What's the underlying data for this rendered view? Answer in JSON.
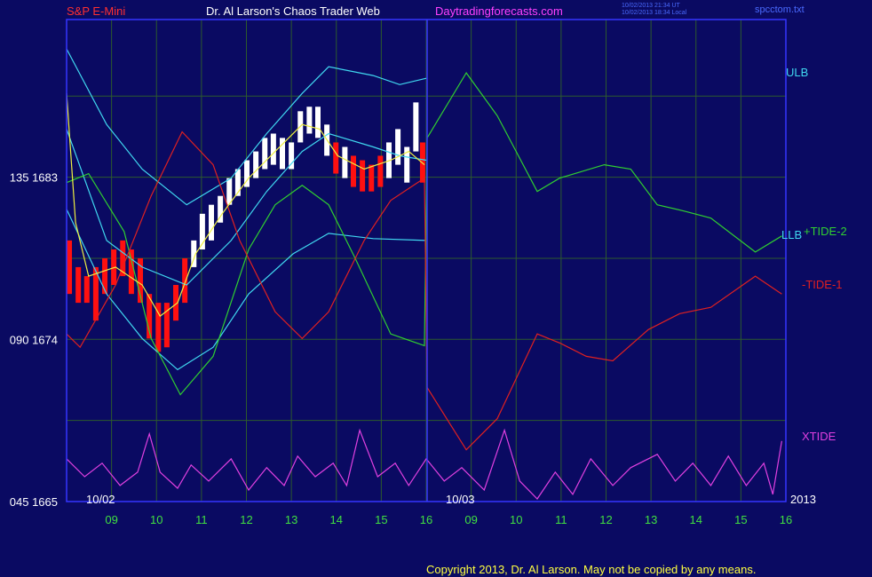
{
  "chart_data": {
    "type": "line",
    "title": "Dr. Al Larson's Chaos Trader Web",
    "symbol": "S&P E-Mini",
    "site": "Daytradingforecasts.com",
    "timestamps": [
      "10/02/2013 21:34 UT",
      "10/02/2013 18:34 Local"
    ],
    "file": "spcctom.txt",
    "copyright": "Copyright 2013, Dr. Al Larson. May not be copied by any means.",
    "annotations": [
      "10/02",
      "10/03",
      "2013"
    ],
    "xlim": [
      0,
      16
    ],
    "xticks": [
      {
        "value": 1,
        "label": "09"
      },
      {
        "value": 2,
        "label": "10"
      },
      {
        "value": 3,
        "label": "11"
      },
      {
        "value": 4,
        "label": "12"
      },
      {
        "value": 5,
        "label": "13"
      },
      {
        "value": 6,
        "label": "14"
      },
      {
        "value": 7,
        "label": "15"
      },
      {
        "value": 8,
        "label": "16"
      },
      {
        "value": 9,
        "label": "09"
      },
      {
        "value": 10,
        "label": "10"
      },
      {
        "value": 11,
        "label": "11"
      },
      {
        "value": 12,
        "label": "12"
      },
      {
        "value": 13,
        "label": "13"
      },
      {
        "value": 14,
        "label": "14"
      },
      {
        "value": 15,
        "label": "15"
      },
      {
        "value": 16,
        "label": "16"
      }
    ],
    "ylim": [
      1665,
      1691.75
    ],
    "yticks": [
      {
        "value": 1683,
        "label": "135 1683"
      },
      {
        "value": 1674,
        "label": "090 1674"
      },
      {
        "value": 1665,
        "label": "045 1665"
      }
    ],
    "ygrid": [
      1687.5,
      1683,
      1678.5,
      1674,
      1669.5
    ],
    "grid": true,
    "grid_color": "#2d5a2d",
    "series": [
      {
        "name": "ULB",
        "color": "#40d8f0",
        "x": [
          0,
          0.89,
          1.68,
          2.67,
          3.66,
          4.45,
          5.24,
          5.83,
          6.82,
          7.41,
          8.0
        ],
        "values": [
          1690.12,
          1685.92,
          1683.45,
          1681.47,
          1682.95,
          1685.42,
          1687.65,
          1689.13,
          1688.64,
          1688.14,
          1688.49
        ]
      },
      {
        "color": "#40d8f0",
        "x": [
          0,
          0.89,
          1.68,
          2.67,
          3.66,
          4.45,
          5.24,
          5.83,
          6.82,
          7.41,
          8.0
        ],
        "values": [
          1685.67,
          1679.49,
          1678.01,
          1677.02,
          1679.49,
          1682.21,
          1684.43,
          1685.42,
          1684.68,
          1684.19,
          1683.94
        ]
      },
      {
        "name": "LLB",
        "color": "#40d8f0",
        "x": [
          0,
          0.89,
          1.68,
          2.47,
          3.26,
          4.05,
          5.04,
          5.83,
          6.82,
          8.0
        ],
        "values": [
          1681.22,
          1676.52,
          1674.05,
          1672.32,
          1673.56,
          1676.52,
          1678.75,
          1679.88,
          1679.59,
          1679.49
        ]
      },
      {
        "name": "+TIDE-2",
        "color": "#30d030",
        "x": [
          0,
          0.49,
          1.28,
          1.88,
          2.53,
          3.26,
          4.05,
          4.64,
          5.24,
          5.83,
          6.42,
          7.21,
          7.96,
          8.02,
          8.89,
          9.58,
          10.47,
          10.97,
          11.96,
          12.55,
          13.14,
          13.74,
          14.33,
          15.32,
          15.91
        ],
        "values": [
          1682.7,
          1683.2,
          1679.98,
          1674.05,
          1670.93,
          1673.06,
          1678.99,
          1681.47,
          1682.55,
          1681.47,
          1678.5,
          1674.3,
          1673.65,
          1685.18,
          1688.79,
          1686.41,
          1682.21,
          1682.95,
          1683.69,
          1683.45,
          1681.47,
          1681.12,
          1680.73,
          1678.85,
          1679.74
        ]
      },
      {
        "name": "-TIDE-1",
        "color": "#e02020",
        "x": [
          0,
          0.3,
          1.09,
          1.88,
          2.57,
          3.26,
          3.85,
          4.64,
          5.24,
          5.83,
          6.62,
          7.21,
          7.96,
          8.02,
          8.89,
          9.58,
          10.47,
          10.97,
          11.56,
          12.15,
          12.94,
          13.64,
          14.33,
          15.32,
          15.91
        ],
        "values": [
          1674.3,
          1673.56,
          1677.02,
          1681.96,
          1685.52,
          1683.69,
          1679.49,
          1675.53,
          1674.05,
          1675.53,
          1679.49,
          1681.71,
          1682.95,
          1671.33,
          1667.87,
          1669.6,
          1674.3,
          1673.8,
          1673.06,
          1672.81,
          1674.54,
          1675.43,
          1675.78,
          1677.51,
          1676.52
        ]
      },
      {
        "name": "XTIDE",
        "color": "#e040e0",
        "x": [
          0,
          0.4,
          0.79,
          1.19,
          1.58,
          1.84,
          2.08,
          2.47,
          2.77,
          3.16,
          3.66,
          4.05,
          4.45,
          4.84,
          5.14,
          5.53,
          5.93,
          6.23,
          6.52,
          6.92,
          7.31,
          7.61,
          8.0,
          8.4,
          8.79,
          9.29,
          9.74,
          10.08,
          10.47,
          10.87,
          11.26,
          11.66,
          12.15,
          12.55,
          13.14,
          13.54,
          13.93,
          14.33,
          14.72,
          15.12,
          15.51,
          15.71,
          15.91
        ],
        "values": [
          1667.37,
          1666.38,
          1667.13,
          1665.89,
          1666.63,
          1668.76,
          1666.63,
          1665.74,
          1667.03,
          1666.14,
          1667.37,
          1665.64,
          1666.88,
          1665.89,
          1667.52,
          1666.38,
          1667.13,
          1665.89,
          1668.96,
          1666.38,
          1667.13,
          1665.89,
          1667.37,
          1666.14,
          1666.88,
          1665.64,
          1668.96,
          1666.14,
          1665.15,
          1666.63,
          1665.4,
          1667.37,
          1665.89,
          1666.88,
          1667.62,
          1666.14,
          1667.13,
          1665.89,
          1667.52,
          1665.89,
          1667.13,
          1665.4,
          1668.36
        ]
      },
      {
        "color": "#f0f040",
        "x": [
          0,
          0.2,
          0.49,
          1.09,
          1.68,
          2.08,
          2.47,
          2.87,
          3.46,
          4.05,
          4.64,
          5.24,
          5.63,
          6.03,
          6.62,
          7.21,
          7.61,
          7.96
        ],
        "values": [
          1687.65,
          1680.48,
          1677.51,
          1678.01,
          1677.02,
          1675.29,
          1676.03,
          1678.75,
          1680.97,
          1682.95,
          1684.43,
          1685.92,
          1685.67,
          1684.19,
          1683.45,
          1683.94,
          1684.43,
          1683.69
        ]
      }
    ],
    "price_bars": {
      "x": [
        0.06,
        0.26,
        0.45,
        0.65,
        0.85,
        1.05,
        1.25,
        1.44,
        1.64,
        1.84,
        2.04,
        2.23,
        2.43,
        2.63,
        2.83,
        3.02,
        3.22,
        3.42,
        3.62,
        3.81,
        4.01,
        4.21,
        4.41,
        4.6,
        4.8,
        5.0,
        5.2,
        5.4,
        5.59,
        5.79,
        5.99,
        6.19,
        6.38,
        6.58,
        6.78,
        6.98,
        7.17,
        7.37,
        7.57,
        7.77,
        7.92
      ],
      "high": [
        1679.49,
        1678.01,
        1677.51,
        1678.01,
        1678.5,
        1678.99,
        1679.49,
        1678.99,
        1678.5,
        1676.52,
        1676.03,
        1676.03,
        1677.02,
        1678.5,
        1679.49,
        1680.97,
        1681.47,
        1681.96,
        1682.95,
        1683.45,
        1683.94,
        1684.43,
        1685.18,
        1685.42,
        1685.18,
        1684.93,
        1686.66,
        1686.91,
        1686.91,
        1685.92,
        1684.93,
        1684.68,
        1684.19,
        1683.94,
        1683.69,
        1684.19,
        1684.93,
        1685.67,
        1684.68,
        1687.15,
        1684.93
      ],
      "low": [
        1676.52,
        1676.03,
        1676.03,
        1675.04,
        1676.52,
        1677.02,
        1677.51,
        1676.52,
        1676.03,
        1674.05,
        1673.31,
        1673.56,
        1675.04,
        1676.03,
        1678.01,
        1678.99,
        1679.49,
        1680.48,
        1681.47,
        1681.96,
        1682.46,
        1682.95,
        1683.45,
        1683.69,
        1683.45,
        1683.45,
        1684.93,
        1685.42,
        1685.18,
        1684.19,
        1683.2,
        1682.95,
        1682.46,
        1682.21,
        1682.21,
        1682.46,
        1682.95,
        1683.69,
        1682.7,
        1684.43,
        1682.7
      ],
      "colors": [
        "#ff1010",
        "#ff1010",
        "#ff1010",
        "#ff1010",
        "#ff1010",
        "#ff1010",
        "#ff1010",
        "#ff1010",
        "#ff1010",
        "#ff1010",
        "#ff1010",
        "#ff1010",
        "#ff1010",
        "#ff1010",
        "#ffffff",
        "#ffffff",
        "#ffffff",
        "#ffffff",
        "#ffffff",
        "#ffffff",
        "#ffffff",
        "#ffffff",
        "#ffffff",
        "#ffffff",
        "#ffffff",
        "#ffffff",
        "#ffffff",
        "#ffffff",
        "#ffffff",
        "#ffffff",
        "#ff1010",
        "#ffffff",
        "#ff1010",
        "#ff1010",
        "#ff1010",
        "#ff1010",
        "#ffffff",
        "#ffffff",
        "#ffffff",
        "#ffffff",
        "#ff1010"
      ]
    }
  }
}
